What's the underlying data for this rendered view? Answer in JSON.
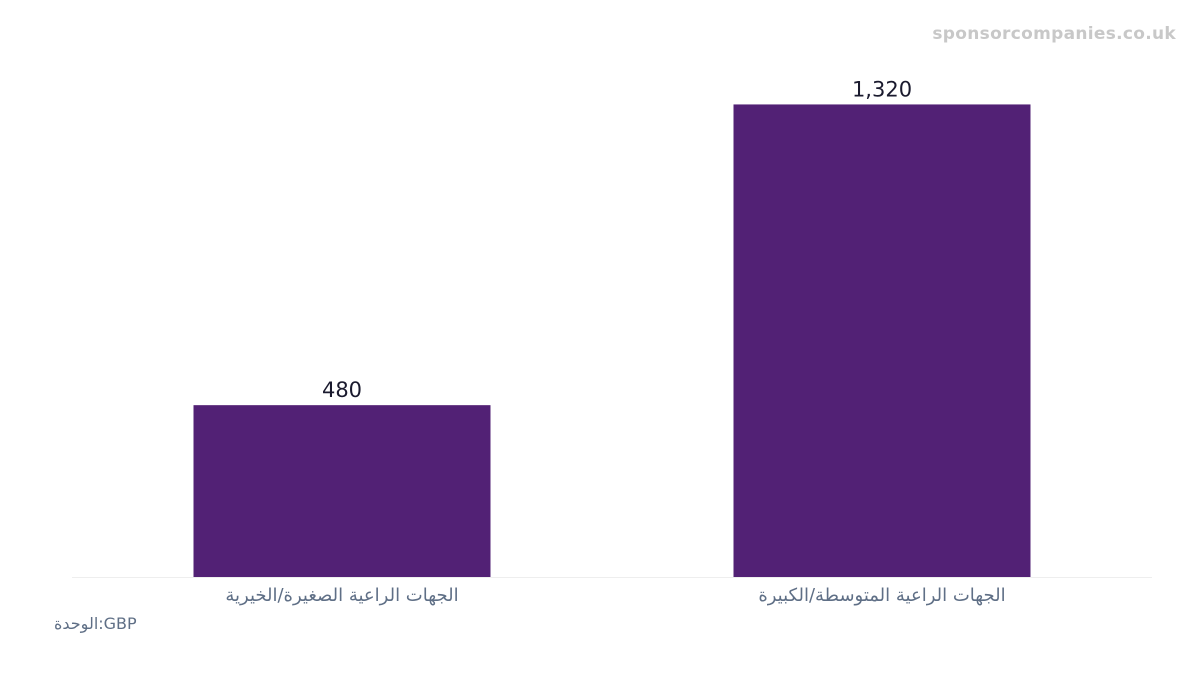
{
  "watermark": "sponsorcompanies.co.uk",
  "unit_label": "الوحدة:GBP",
  "colors": {
    "bar": "#522175",
    "axis_line": "#eeeeee"
  },
  "chart_data": {
    "type": "bar",
    "categories": [
      "الجهات الراعية الصغيرة/الخيرية",
      "الجهات الراعية المتوسطة/الكبيرة"
    ],
    "values": [
      480,
      1320
    ],
    "value_labels": [
      "480",
      "1,320"
    ],
    "title": "",
    "xlabel": "",
    "ylabel": "",
    "ylim": [
      0,
      1500
    ],
    "grid": false,
    "legend": "none"
  }
}
